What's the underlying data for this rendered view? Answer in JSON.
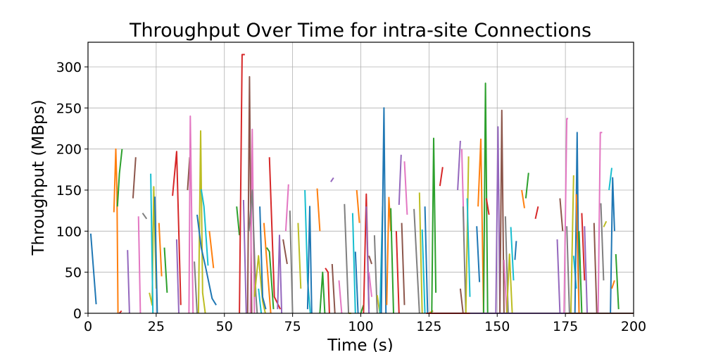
{
  "chart_data": {
    "type": "line",
    "title": "Throughput Over Time for intra-site Connections",
    "xlabel": "Time (s)",
    "ylabel": "Throughput (MBps)",
    "xlim": [
      0,
      200
    ],
    "ylim": [
      0,
      330
    ],
    "xticks": [
      0,
      25,
      50,
      75,
      100,
      125,
      150,
      175,
      200
    ],
    "yticks": [
      0,
      50,
      100,
      150,
      200,
      250,
      300
    ],
    "grid": true,
    "legend": "none",
    "palette": [
      "#1f77b4",
      "#ff7f0e",
      "#2ca02c",
      "#d62728",
      "#9467bd",
      "#8c564b",
      "#e377c2",
      "#7f7f7f",
      "#bcbd22",
      "#17becf"
    ],
    "series": [
      {
        "x": [
          1,
          3
        ],
        "y": [
          97,
          11
        ]
      },
      {
        "x": [
          9.5,
          10.2,
          10.6,
          11
        ],
        "y": [
          123,
          200,
          150,
          0
        ]
      },
      {
        "x": [
          10.8,
          11.5,
          12.5
        ],
        "y": [
          130,
          170,
          200
        ]
      },
      {
        "x": [
          11.5,
          12.3
        ],
        "y": [
          0,
          3
        ]
      },
      {
        "x": [
          14.5,
          15.2
        ],
        "y": [
          77,
          0
        ]
      },
      {
        "x": [
          16.5,
          17.5
        ],
        "y": [
          140,
          190
        ]
      },
      {
        "x": [
          18.5,
          19.2
        ],
        "y": [
          118,
          0
        ]
      },
      {
        "x": [
          20,
          21.5
        ],
        "y": [
          122,
          115
        ]
      },
      {
        "x": [
          22.5,
          23.5,
          24.1,
          25
        ],
        "y": [
          25,
          10,
          154,
          30
        ]
      },
      {
        "x": [
          23,
          23.8
        ],
        "y": [
          170,
          0
        ]
      },
      {
        "x": [
          24.5,
          25.4
        ],
        "y": [
          142,
          0
        ]
      },
      {
        "x": [
          26,
          27
        ],
        "y": [
          110,
          45
        ]
      },
      {
        "x": [
          28,
          29
        ],
        "y": [
          80,
          25
        ]
      },
      {
        "x": [
          31,
          32.5,
          34
        ],
        "y": [
          143,
          197,
          10
        ]
      },
      {
        "x": [
          32.5,
          33.3
        ],
        "y": [
          90,
          0
        ]
      },
      {
        "x": [
          36.5,
          37.3
        ],
        "y": [
          150,
          190
        ]
      },
      {
        "x": [
          37,
          37.5,
          38.5
        ],
        "y": [
          0,
          240,
          0
        ]
      },
      {
        "x": [
          39,
          40
        ],
        "y": [
          63,
          0
        ]
      },
      {
        "x": [
          40.5,
          41.3,
          42,
          43
        ],
        "y": [
          0,
          222,
          25,
          0
        ]
      },
      {
        "x": [
          41.5,
          42.5,
          44
        ],
        "y": [
          151,
          130,
          58
        ]
      },
      {
        "x": [
          40,
          41.5,
          43,
          45.5,
          47
        ],
        "y": [
          120,
          80,
          58,
          18,
          10
        ]
      },
      {
        "x": [
          44.5,
          46
        ],
        "y": [
          100,
          55
        ]
      },
      {
        "x": [
          54.5,
          55.5
        ],
        "y": [
          130,
          95
        ]
      },
      {
        "x": [
          55.5,
          56.5,
          57.5
        ],
        "y": [
          0,
          315,
          315
        ]
      },
      {
        "x": [
          57,
          58
        ],
        "y": [
          138,
          0
        ]
      },
      {
        "x": [
          58.5,
          59.2,
          60
        ],
        "y": [
          0,
          288,
          0
        ]
      },
      {
        "x": [
          59.5,
          60.2,
          61
        ],
        "y": [
          0,
          224,
          0
        ]
      },
      {
        "x": [
          59,
          60.2,
          61.5,
          62
        ],
        "y": [
          100,
          150,
          25,
          0
        ]
      },
      {
        "x": [
          61,
          62.5,
          64,
          65
        ],
        "y": [
          20,
          70,
          15,
          0
        ]
      },
      {
        "x": [
          62.5,
          63.5
        ],
        "y": [
          30,
          0
        ]
      },
      {
        "x": [
          63,
          64,
          65.2
        ],
        "y": [
          130,
          20,
          5
        ]
      },
      {
        "x": [
          64.5,
          65.5,
          67
        ],
        "y": [
          110,
          65,
          0
        ]
      },
      {
        "x": [
          65.5,
          66.5,
          68
        ],
        "y": [
          80,
          75,
          5
        ]
      },
      {
        "x": [
          66.5,
          68.3,
          70.5
        ],
        "y": [
          190,
          20,
          5
        ]
      },
      {
        "x": [
          69.5,
          70.2,
          71
        ],
        "y": [
          5,
          95,
          0
        ]
      },
      {
        "x": [
          71.5,
          73
        ],
        "y": [
          90,
          60
        ]
      },
      {
        "x": [
          72.5,
          73.5
        ],
        "y": [
          100,
          157
        ]
      },
      {
        "x": [
          74,
          75
        ],
        "y": [
          125,
          0
        ]
      },
      {
        "x": [
          77,
          78
        ],
        "y": [
          110,
          30
        ]
      },
      {
        "x": [
          79.5,
          80.5,
          81.5
        ],
        "y": [
          150,
          40,
          0
        ]
      },
      {
        "x": [
          80.5,
          81.3,
          82
        ],
        "y": [
          5,
          130,
          0
        ]
      },
      {
        "x": [
          84,
          85
        ],
        "y": [
          152,
          100
        ]
      },
      {
        "x": [
          85,
          86,
          86.8
        ],
        "y": [
          0,
          50,
          0
        ]
      },
      {
        "x": [
          87,
          88,
          88.5
        ],
        "y": [
          55,
          50,
          0
        ]
      },
      {
        "x": [
          89,
          90
        ],
        "y": [
          160,
          165
        ]
      },
      {
        "x": [
          89.5,
          90.5
        ],
        "y": [
          60,
          0
        ]
      },
      {
        "x": [
          92,
          93
        ],
        "y": [
          40,
          0
        ]
      },
      {
        "x": [
          94,
          95.5
        ],
        "y": [
          133,
          0
        ]
      },
      {
        "x": [
          95.5,
          96.5
        ],
        "y": [
          0,
          0
        ]
      },
      {
        "x": [
          97,
          98
        ],
        "y": [
          122,
          0
        ]
      },
      {
        "x": [
          98,
          99
        ],
        "y": [
          75,
          0
        ]
      },
      {
        "x": [
          98.5,
          99.5
        ],
        "y": [
          150,
          110
        ]
      },
      {
        "x": [
          100,
          101
        ],
        "y": [
          0,
          10
        ]
      },
      {
        "x": [
          101,
          102,
          103
        ],
        "y": [
          0,
          145,
          5
        ]
      },
      {
        "x": [
          102,
          103
        ],
        "y": [
          130,
          0
        ]
      },
      {
        "x": [
          103,
          104
        ],
        "y": [
          70,
          60
        ]
      },
      {
        "x": [
          103,
          104
        ],
        "y": [
          50,
          20
        ]
      },
      {
        "x": [
          105,
          106
        ],
        "y": [
          95,
          0
        ]
      },
      {
        "x": [
          106,
          107
        ],
        "y": [
          22,
          0
        ]
      },
      {
        "x": [
          107,
          108
        ],
        "y": [
          0,
          130
        ]
      },
      {
        "x": [
          107.5,
          108.5,
          109.2
        ],
        "y": [
          0,
          250,
          0
        ]
      },
      {
        "x": [
          109.5,
          110.3,
          111
        ],
        "y": [
          10,
          141,
          100
        ]
      },
      {
        "x": [
          111,
          112
        ],
        "y": [
          128,
          0
        ]
      },
      {
        "x": [
          113,
          114
        ],
        "y": [
          100,
          0
        ]
      },
      {
        "x": [
          114,
          114.8
        ],
        "y": [
          132,
          193
        ]
      },
      {
        "x": [
          115,
          116
        ],
        "y": [
          110,
          10
        ]
      },
      {
        "x": [
          116,
          117
        ],
        "y": [
          185,
          120
        ]
      },
      {
        "x": [
          119.5,
          121.5
        ],
        "y": [
          127,
          0
        ]
      },
      {
        "x": [
          121.5,
          122.5
        ],
        "y": [
          147,
          0
        ]
      },
      {
        "x": [
          122.5,
          123.5
        ],
        "y": [
          102,
          0
        ]
      },
      {
        "x": [
          123.5,
          124.5
        ],
        "y": [
          130,
          0
        ]
      },
      {
        "x": [
          125,
          126.5
        ],
        "y": [
          0,
          3
        ]
      },
      {
        "x": [
          126,
          126.7,
          127.5
        ],
        "y": [
          0,
          213,
          25
        ]
      },
      {
        "x": [
          129,
          130
        ],
        "y": [
          155,
          178
        ]
      },
      {
        "x": [
          135.5,
          136.5
        ],
        "y": [
          150,
          210
        ]
      },
      {
        "x": [
          136.5,
          137.5
        ],
        "y": [
          30,
          0
        ]
      },
      {
        "x": [
          137,
          137.8
        ],
        "y": [
          200,
          100
        ]
      },
      {
        "x": [
          137.5,
          138.5
        ],
        "y": [
          130,
          0
        ]
      },
      {
        "x": [
          138.5,
          139.5
        ],
        "y": [
          0,
          191
        ]
      },
      {
        "x": [
          139,
          140
        ],
        "y": [
          140,
          20
        ]
      },
      {
        "x": [
          142.5,
          143.5
        ],
        "y": [
          106,
          38
        ]
      },
      {
        "x": [
          143,
          144,
          145
        ],
        "y": [
          130,
          212,
          0
        ]
      },
      {
        "x": [
          145,
          145.7,
          146.5
        ],
        "y": [
          0,
          280,
          0
        ]
      },
      {
        "x": [
          146,
          147
        ],
        "y": [
          140,
          120
        ]
      },
      {
        "x": [
          149.5,
          150.3,
          151
        ],
        "y": [
          0,
          227,
          0
        ]
      },
      {
        "x": [
          151,
          151.7,
          152.5
        ],
        "y": [
          0,
          247,
          0
        ]
      },
      {
        "x": [
          152.5,
          153.5
        ],
        "y": [
          65,
          0
        ]
      },
      {
        "x": [
          153,
          154
        ],
        "y": [
          118,
          0
        ]
      },
      {
        "x": [
          153.5,
          154.5,
          155.5
        ],
        "y": [
          0,
          72,
          0
        ]
      },
      {
        "x": [
          155,
          156
        ],
        "y": [
          105,
          40
        ]
      },
      {
        "x": [
          156.5,
          157
        ],
        "y": [
          65,
          88
        ]
      },
      {
        "x": [
          159,
          160
        ],
        "y": [
          150,
          128
        ]
      },
      {
        "x": [
          160.5,
          161.5
        ],
        "y": [
          140,
          171
        ]
      },
      {
        "x": [
          164,
          165
        ],
        "y": [
          115,
          130
        ]
      },
      {
        "x": [
          172,
          173
        ],
        "y": [
          90,
          0
        ]
      },
      {
        "x": [
          173,
          174
        ],
        "y": [
          140,
          100
        ]
      },
      {
        "x": [
          174.5,
          175.5,
          176
        ],
        "y": [
          0,
          237,
          237
        ]
      },
      {
        "x": [
          175.5,
          176.5
        ],
        "y": [
          106,
          0
        ]
      },
      {
        "x": [
          177,
          178
        ],
        "y": [
          0,
          168
        ]
      },
      {
        "x": [
          178,
          179
        ],
        "y": [
          70,
          30
        ]
      },
      {
        "x": [
          178.5,
          179.3,
          180
        ],
        "y": [
          0,
          220,
          0
        ]
      },
      {
        "x": [
          179,
          180
        ],
        "y": [
          145,
          0
        ]
      },
      {
        "x": [
          180,
          181
        ],
        "y": [
          100,
          0
        ]
      },
      {
        "x": [
          181,
          182
        ],
        "y": [
          122,
          40
        ]
      },
      {
        "x": [
          182,
          183
        ],
        "y": [
          106,
          0
        ]
      },
      {
        "x": [
          185.5,
          186.5
        ],
        "y": [
          110,
          0
        ]
      },
      {
        "x": [
          187,
          187.8,
          188.5
        ],
        "y": [
          0,
          220,
          220
        ]
      },
      {
        "x": [
          188,
          189
        ],
        "y": [
          134,
          40
        ]
      },
      {
        "x": [
          189,
          190
        ],
        "y": [
          105,
          112
        ]
      },
      {
        "x": [
          191,
          192
        ],
        "y": [
          150,
          177
        ]
      },
      {
        "x": [
          191.5,
          192.3,
          193
        ],
        "y": [
          0,
          165,
          100
        ]
      },
      {
        "x": [
          192,
          193
        ],
        "y": [
          30,
          40
        ]
      },
      {
        "x": [
          193.5,
          194.5
        ],
        "y": [
          72,
          5
        ]
      },
      {
        "x": [
          124,
          150
        ],
        "y": [
          0,
          0
        ]
      },
      {
        "x": [
          140,
          175
        ],
        "y": [
          0,
          0
        ]
      },
      {
        "x": [
          175,
          200
        ],
        "y": [
          0,
          0
        ]
      }
    ]
  }
}
